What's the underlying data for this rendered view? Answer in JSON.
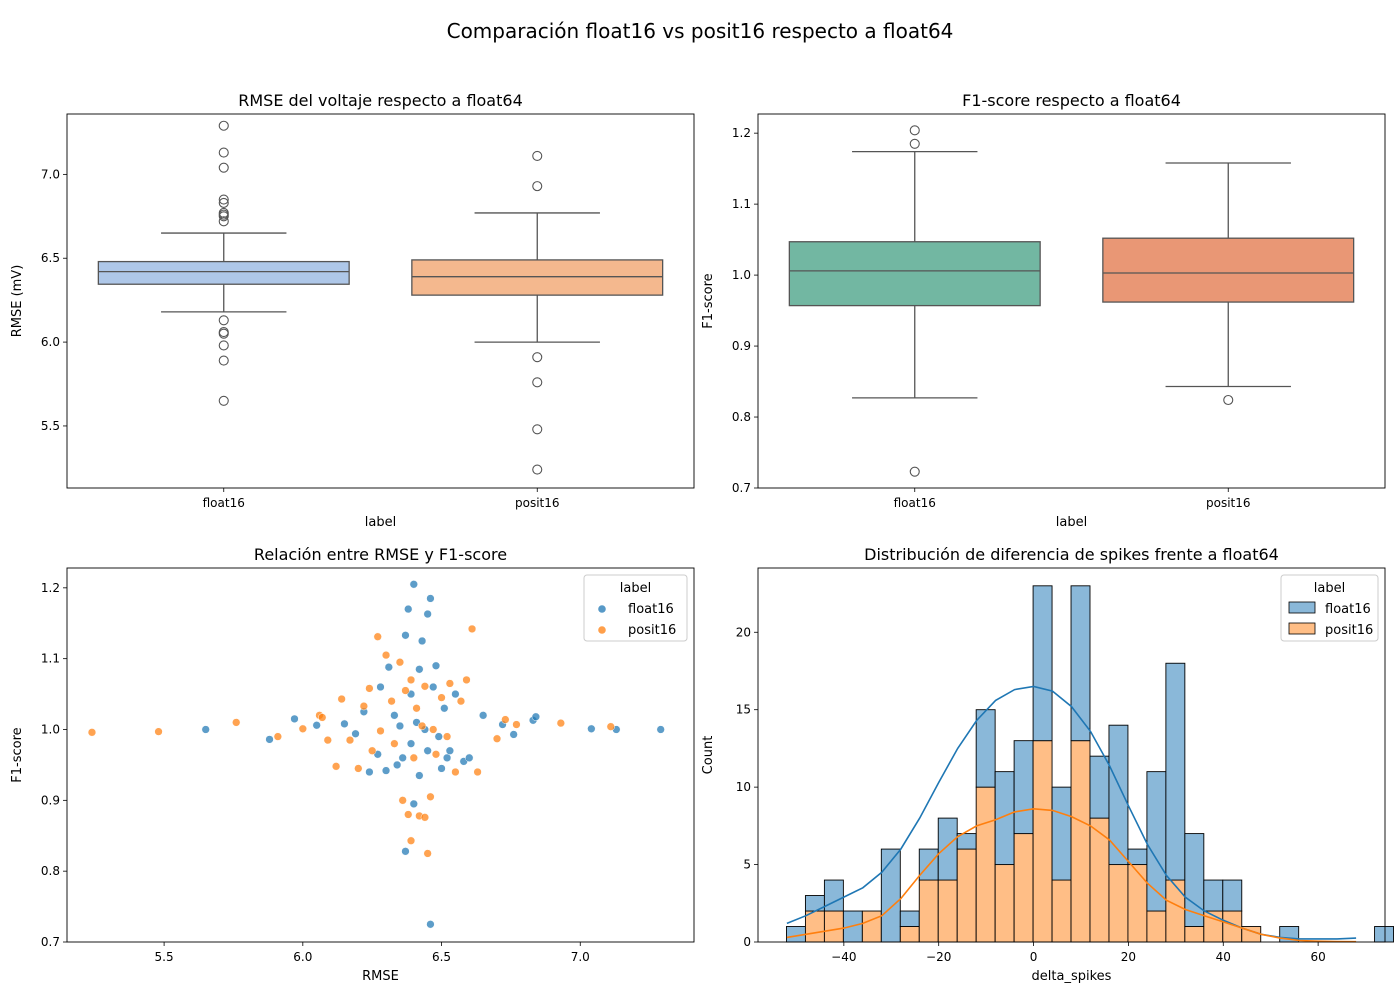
{
  "figure": {
    "suptitle": "Comparación float16 vs posit16 respecto a float64"
  },
  "colors": {
    "box_rmse": [
      "#aec7e8",
      "#f4b88e"
    ],
    "box_f1": [
      "#72b7a2",
      "#e99775"
    ],
    "series": [
      "#1f77b4",
      "#ff7f0e"
    ],
    "hist": [
      "#8ab8d9",
      "#ffbe86"
    ]
  },
  "chart_data": [
    {
      "type": "box",
      "title": "RMSE del voltaje respecto a float64",
      "xlabel": "label",
      "ylabel": "RMSE (mV)",
      "categories": [
        "float16",
        "posit16"
      ],
      "ylim": [
        5.13,
        7.36
      ],
      "yticks": [
        5.5,
        6.0,
        6.5,
        7.0
      ],
      "ytick_labels": [
        "5.5",
        "6.0",
        "6.5",
        "7.0"
      ],
      "boxes": [
        {
          "q1": 6.345,
          "median": 6.42,
          "q3": 6.48,
          "whisker_low": 6.18,
          "whisker_high": 6.65,
          "outliers": [
            7.29,
            7.13,
            7.04,
            6.85,
            6.83,
            6.77,
            6.76,
            6.75,
            6.72,
            6.13,
            6.06,
            6.05,
            5.98,
            5.89,
            5.65
          ]
        },
        {
          "q1": 6.28,
          "median": 6.39,
          "q3": 6.49,
          "whisker_low": 6.0,
          "whisker_high": 6.77,
          "outliers": [
            7.11,
            6.93,
            5.91,
            5.76,
            5.48,
            5.24
          ]
        }
      ]
    },
    {
      "type": "box",
      "title": "F1-score respecto a float64",
      "xlabel": "label",
      "ylabel": "F1-score",
      "categories": [
        "float16",
        "posit16"
      ],
      "ylim": [
        0.7,
        1.227
      ],
      "yticks": [
        0.7,
        0.8,
        0.9,
        1.0,
        1.1,
        1.2
      ],
      "ytick_labels": [
        "0.7",
        "0.8",
        "0.9",
        "1.0",
        "1.1",
        "1.2"
      ],
      "boxes": [
        {
          "q1": 0.957,
          "median": 1.006,
          "q3": 1.047,
          "whisker_low": 0.827,
          "whisker_high": 1.174,
          "outliers": [
            1.204,
            1.185,
            0.723
          ]
        },
        {
          "q1": 0.962,
          "median": 1.003,
          "q3": 1.052,
          "whisker_low": 0.843,
          "whisker_high": 1.158,
          "outliers": [
            0.824
          ]
        }
      ]
    },
    {
      "type": "scatter",
      "title": "Relación entre RMSE y F1-score",
      "xlabel": "RMSE",
      "ylabel": "F1-score",
      "xlim": [
        5.15,
        7.41
      ],
      "ylim": [
        0.7,
        1.228
      ],
      "xticks": [
        5.5,
        6.0,
        6.5,
        7.0
      ],
      "xtick_labels": [
        "5.5",
        "6.0",
        "6.5",
        "7.0"
      ],
      "yticks": [
        0.7,
        0.8,
        0.9,
        1.0,
        1.1,
        1.2
      ],
      "ytick_labels": [
        "0.7",
        "0.8",
        "0.9",
        "1.0",
        "1.1",
        "1.2"
      ],
      "legend": {
        "title": "label",
        "position": "upper right"
      },
      "series": [
        {
          "name": "float16",
          "points": [
            [
              5.65,
              1.0
            ],
            [
              5.88,
              0.986
            ],
            [
              5.97,
              1.015
            ],
            [
              6.05,
              1.006
            ],
            [
              6.15,
              1.008
            ],
            [
              6.19,
              0.994
            ],
            [
              6.22,
              1.025
            ],
            [
              6.24,
              0.94
            ],
            [
              6.27,
              0.965
            ],
            [
              6.28,
              1.06
            ],
            [
              6.3,
              0.942
            ],
            [
              6.31,
              1.088
            ],
            [
              6.33,
              1.02
            ],
            [
              6.34,
              0.95
            ],
            [
              6.35,
              1.005
            ],
            [
              6.36,
              0.96
            ],
            [
              6.37,
              1.133
            ],
            [
              6.37,
              0.828
            ],
            [
              6.38,
              1.17
            ],
            [
              6.39,
              1.05
            ],
            [
              6.39,
              0.98
            ],
            [
              6.4,
              1.205
            ],
            [
              6.4,
              0.895
            ],
            [
              6.41,
              1.01
            ],
            [
              6.42,
              1.085
            ],
            [
              6.42,
              0.935
            ],
            [
              6.43,
              1.125
            ],
            [
              6.44,
              1.0
            ],
            [
              6.45,
              1.163
            ],
            [
              6.45,
              0.97
            ],
            [
              6.46,
              1.185
            ],
            [
              6.46,
              0.725
            ],
            [
              6.47,
              1.06
            ],
            [
              6.48,
              1.09
            ],
            [
              6.49,
              0.99
            ],
            [
              6.5,
              0.945
            ],
            [
              6.51,
              1.03
            ],
            [
              6.52,
              0.96
            ],
            [
              6.53,
              0.97
            ],
            [
              6.55,
              1.05
            ],
            [
              6.58,
              0.955
            ],
            [
              6.6,
              0.96
            ],
            [
              6.65,
              1.02
            ],
            [
              6.72,
              1.007
            ],
            [
              6.76,
              0.993
            ],
            [
              6.83,
              1.013
            ],
            [
              6.84,
              1.018
            ],
            [
              7.04,
              1.001
            ],
            [
              7.13,
              1.0
            ],
            [
              7.29,
              1.0
            ]
          ]
        },
        {
          "name": "posit16",
          "points": [
            [
              5.24,
              0.996
            ],
            [
              5.48,
              0.997
            ],
            [
              5.76,
              1.01
            ],
            [
              5.91,
              0.99
            ],
            [
              6.0,
              1.001
            ],
            [
              6.06,
              1.02
            ],
            [
              6.07,
              1.017
            ],
            [
              6.09,
              0.985
            ],
            [
              6.12,
              0.948
            ],
            [
              6.14,
              1.043
            ],
            [
              6.17,
              0.985
            ],
            [
              6.2,
              0.945
            ],
            [
              6.22,
              1.033
            ],
            [
              6.24,
              1.058
            ],
            [
              6.25,
              0.97
            ],
            [
              6.27,
              1.131
            ],
            [
              6.28,
              0.998
            ],
            [
              6.3,
              1.105
            ],
            [
              6.32,
              1.04
            ],
            [
              6.33,
              0.98
            ],
            [
              6.35,
              1.095
            ],
            [
              6.36,
              0.9
            ],
            [
              6.37,
              1.055
            ],
            [
              6.38,
              0.88
            ],
            [
              6.39,
              1.07
            ],
            [
              6.39,
              0.843
            ],
            [
              6.4,
              0.96
            ],
            [
              6.41,
              1.03
            ],
            [
              6.42,
              0.878
            ],
            [
              6.43,
              1.005
            ],
            [
              6.44,
              1.061
            ],
            [
              6.44,
              0.876
            ],
            [
              6.45,
              0.825
            ],
            [
              6.46,
              0.905
            ],
            [
              6.47,
              1.0
            ],
            [
              6.48,
              0.965
            ],
            [
              6.5,
              1.045
            ],
            [
              6.52,
              0.99
            ],
            [
              6.53,
              1.065
            ],
            [
              6.55,
              0.94
            ],
            [
              6.57,
              1.04
            ],
            [
              6.59,
              1.07
            ],
            [
              6.61,
              1.142
            ],
            [
              6.63,
              0.94
            ],
            [
              6.7,
              0.987
            ],
            [
              6.73,
              1.014
            ],
            [
              6.77,
              1.007
            ],
            [
              6.93,
              1.009
            ],
            [
              7.11,
              1.004
            ]
          ]
        }
      ]
    },
    {
      "type": "histogram",
      "title": "Distribución de diferencia de spikes frente a float64",
      "xlabel": "delta_spikes",
      "ylabel": "Count",
      "xlim": [
        -58.1,
        74.1
      ],
      "ylim": [
        0,
        24.15
      ],
      "xticks": [
        -40,
        -20,
        0,
        20,
        40,
        60
      ],
      "xtick_labels": [
        "−40",
        "−20",
        "0",
        "20",
        "40",
        "60"
      ],
      "yticks": [
        0,
        5,
        10,
        15,
        20
      ],
      "ytick_labels": [
        "0",
        "5",
        "10",
        "15",
        "20"
      ],
      "legend": {
        "title": "label",
        "position": "upper right"
      },
      "bin_start": -52.1,
      "bin_width": 4,
      "stacked": true,
      "series": [
        {
          "name": "float16",
          "counts": [
            1,
            1,
            2,
            2,
            0,
            6,
            1,
            2,
            4,
            1,
            5,
            6,
            6,
            10,
            6,
            10,
            4,
            9,
            1,
            9,
            14,
            6,
            2,
            2,
            0,
            0,
            1,
            0,
            0,
            0,
            0,
            1
          ]
        },
        {
          "name": "posit16",
          "counts": [
            0,
            2,
            2,
            0,
            2,
            0,
            1,
            4,
            4,
            6,
            10,
            5,
            7,
            13,
            4,
            13,
            8,
            5,
            5,
            2,
            4,
            1,
            2,
            2,
            1,
            0,
            0,
            0,
            0,
            0,
            0,
            0
          ]
        }
      ],
      "kde": [
        {
          "name": "float16",
          "x": [
            -52,
            -48,
            -44,
            -40,
            -36,
            -32,
            -28,
            -24,
            -20,
            -16,
            -12,
            -8,
            -4,
            0,
            4,
            8,
            12,
            16,
            20,
            24,
            28,
            32,
            36,
            40,
            44,
            48,
            52,
            56,
            60,
            64,
            68
          ],
          "y": [
            1.2,
            1.7,
            2.3,
            2.9,
            3.5,
            4.5,
            6.0,
            8.0,
            10.3,
            12.5,
            14.3,
            15.6,
            16.3,
            16.5,
            16.2,
            15.2,
            13.6,
            11.4,
            8.8,
            6.3,
            4.3,
            2.9,
            2.0,
            1.4,
            0.9,
            0.5,
            0.3,
            0.2,
            0.2,
            0.2,
            0.25
          ]
        },
        {
          "name": "posit16",
          "x": [
            -52,
            -48,
            -44,
            -40,
            -36,
            -32,
            -28,
            -24,
            -20,
            -16,
            -12,
            -8,
            -4,
            0,
            4,
            8,
            12,
            16,
            20,
            24,
            28,
            32,
            36,
            40,
            44,
            48,
            52,
            56,
            60,
            64,
            68
          ],
          "y": [
            0.3,
            0.5,
            0.7,
            0.9,
            1.2,
            1.7,
            2.8,
            4.3,
            5.7,
            6.8,
            7.5,
            7.9,
            8.4,
            8.6,
            8.5,
            8.1,
            7.5,
            6.6,
            5.2,
            3.8,
            2.7,
            2.1,
            1.7,
            1.3,
            0.9,
            0.5,
            0.25,
            0.1,
            0.05,
            0.03,
            0.02
          ]
        }
      ]
    }
  ]
}
